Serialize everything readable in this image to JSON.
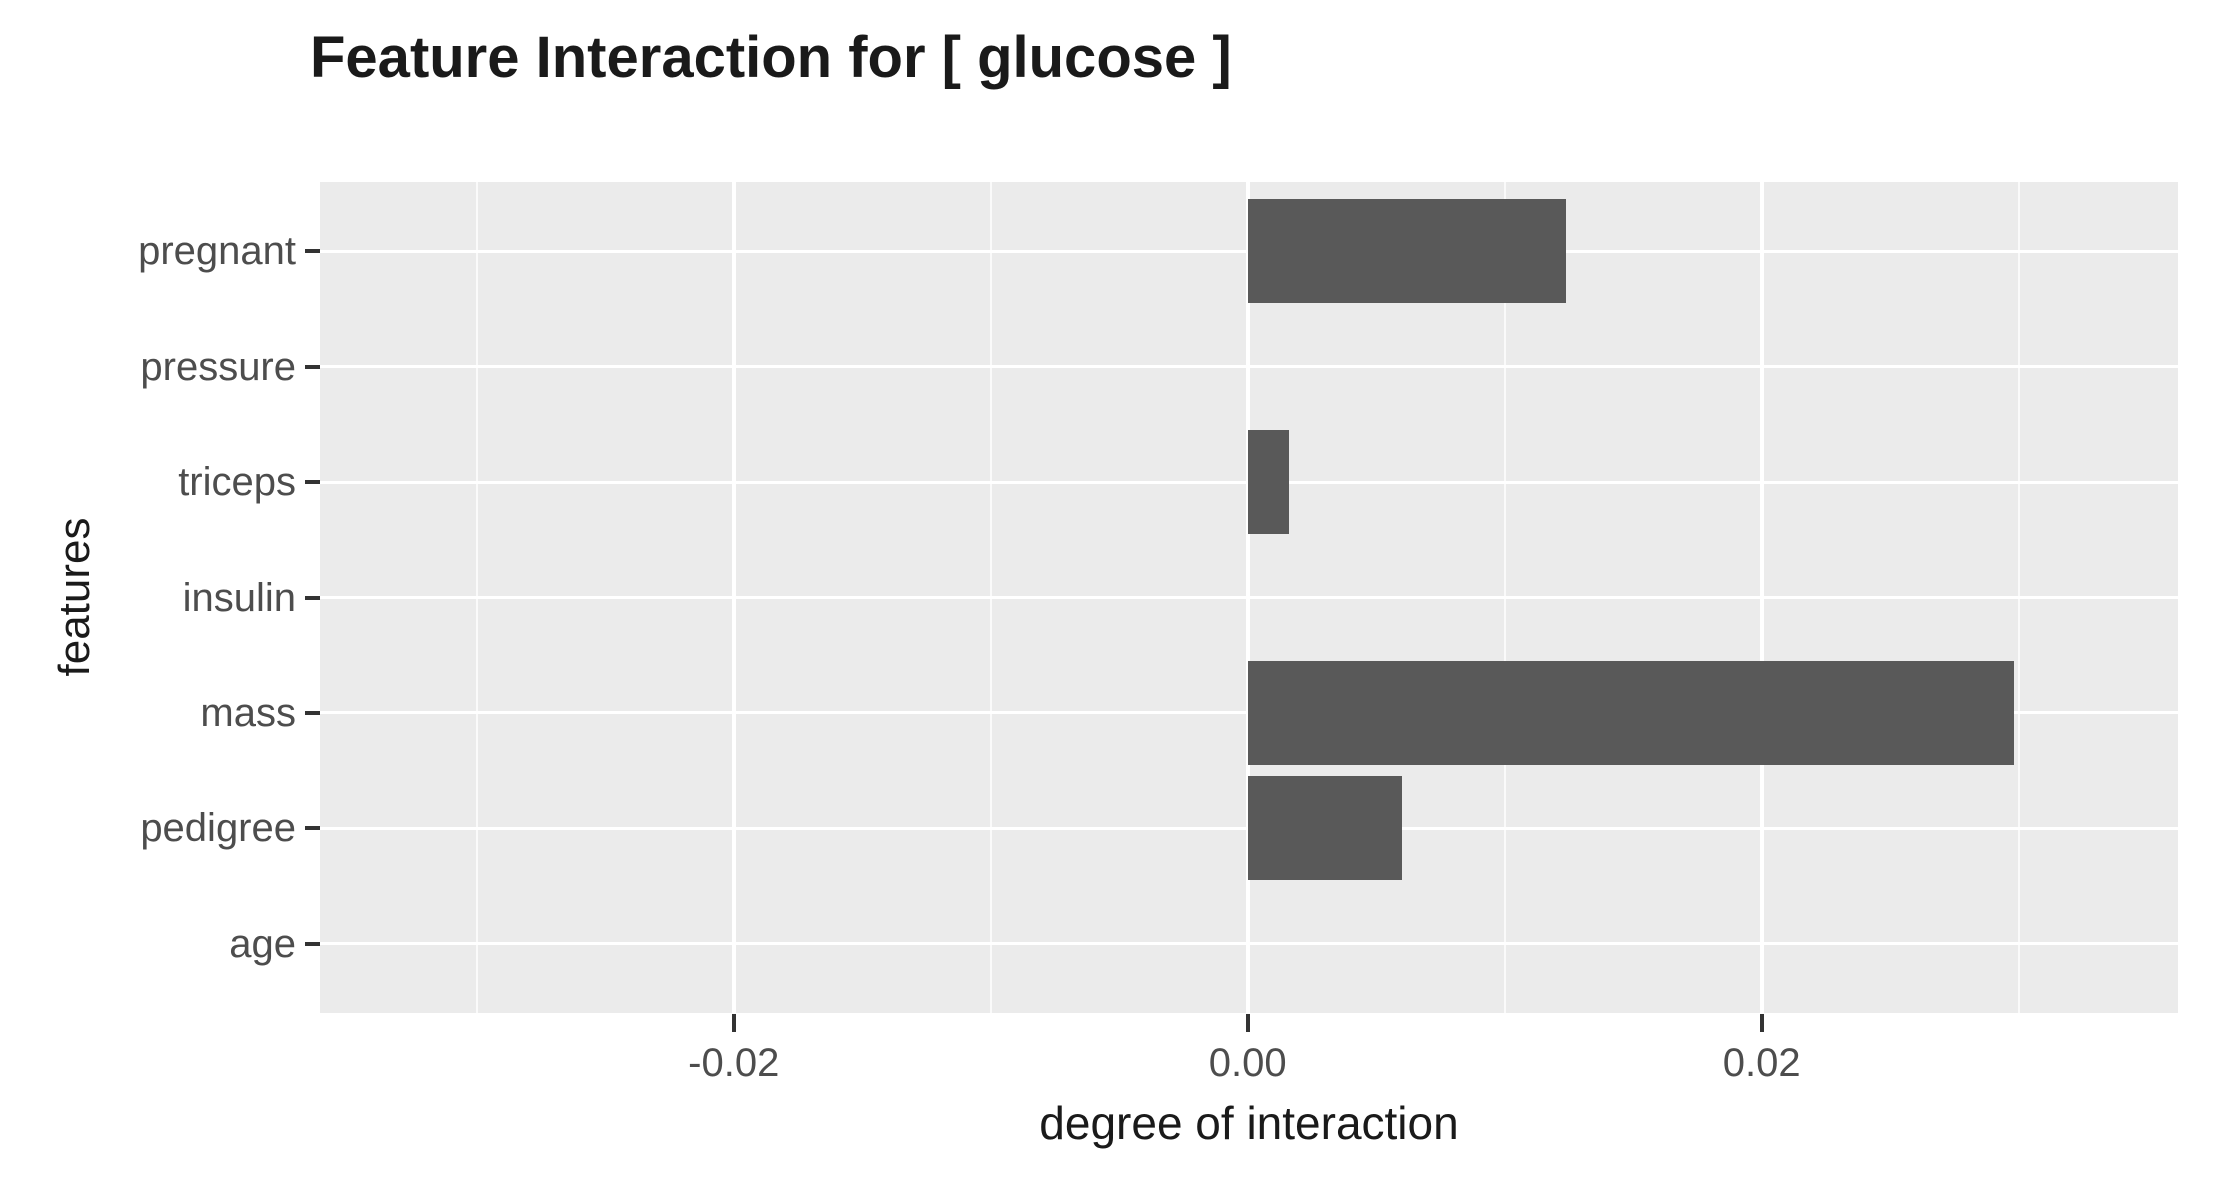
{
  "chart_data": {
    "type": "bar",
    "orientation": "horizontal",
    "title": "Feature Interaction for [ glucose ]",
    "xlabel": "degree of interaction",
    "ylabel": "features",
    "categories": [
      "pregnant",
      "pressure",
      "triceps",
      "insulin",
      "mass",
      "pedigree",
      "age"
    ],
    "values": [
      0.0124,
      0,
      0.0016,
      0,
      0.0298,
      0.006,
      0
    ],
    "xlim": [
      -0.0361,
      0.0362
    ],
    "x_major_ticks": [
      -0.02,
      0,
      0.02
    ],
    "x_tick_labels": [
      "-0.02",
      "0.00",
      "0.02"
    ],
    "x_minor_ticks": [
      -0.03,
      -0.01,
      0.01,
      0.03
    ],
    "bar_relative_width": 0.9,
    "grid": true,
    "legend": false,
    "colors": {
      "page_bg": "#FFFFFF",
      "panel_bg": "#EBEBEB",
      "bar_fill": "#595959",
      "grid_major": "#FFFFFF",
      "grid_minor": "#F6F6F6",
      "axis_text": "#4D4D4D",
      "axis_title": "#1A1A1A",
      "title_text": "#1A1A1A",
      "tick_mark": "#333333"
    }
  }
}
